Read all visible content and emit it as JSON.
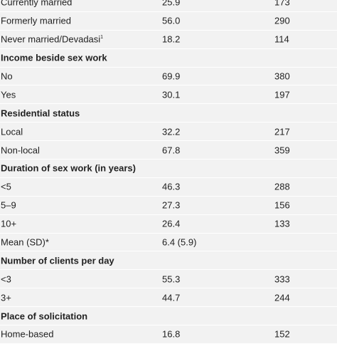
{
  "rows": [
    {
      "type": "data",
      "label": "Currently married",
      "percent": "25.9",
      "n": "173"
    },
    {
      "type": "data",
      "label": "Formerly married",
      "percent": "56.0",
      "n": "290"
    },
    {
      "type": "data",
      "label": "Never married/Devadasi",
      "sup": "1",
      "percent": "18.2",
      "n": "114"
    },
    {
      "type": "header",
      "label": "Income beside sex work"
    },
    {
      "type": "data",
      "label": "No",
      "percent": "69.9",
      "n": "380"
    },
    {
      "type": "data",
      "label": "Yes",
      "percent": "30.1",
      "n": "197"
    },
    {
      "type": "header",
      "label": "Residential status"
    },
    {
      "type": "data",
      "label": "Local",
      "percent": "32.2",
      "n": "217"
    },
    {
      "type": "data",
      "label": "Non-local",
      "percent": "67.8",
      "n": "359"
    },
    {
      "type": "header",
      "label": "Duration of sex work (in years)"
    },
    {
      "type": "data",
      "label": "<5",
      "percent": "46.3",
      "n": "288"
    },
    {
      "type": "data",
      "label": "5–9",
      "percent": "27.3",
      "n": "156"
    },
    {
      "type": "data",
      "label": "10+",
      "percent": "26.4",
      "n": "133"
    },
    {
      "type": "data",
      "label": "Mean (SD)*",
      "percent": "6.4 (5.9)",
      "n": ""
    },
    {
      "type": "header",
      "label": "Number of clients per day"
    },
    {
      "type": "data",
      "label": "<3",
      "percent": "55.3",
      "n": "333"
    },
    {
      "type": "data",
      "label": "3+",
      "percent": "44.7",
      "n": "244"
    },
    {
      "type": "header",
      "label": "Place of solicitation"
    },
    {
      "type": "data",
      "label": "Home-based",
      "percent": "16.8",
      "n": "152"
    }
  ]
}
